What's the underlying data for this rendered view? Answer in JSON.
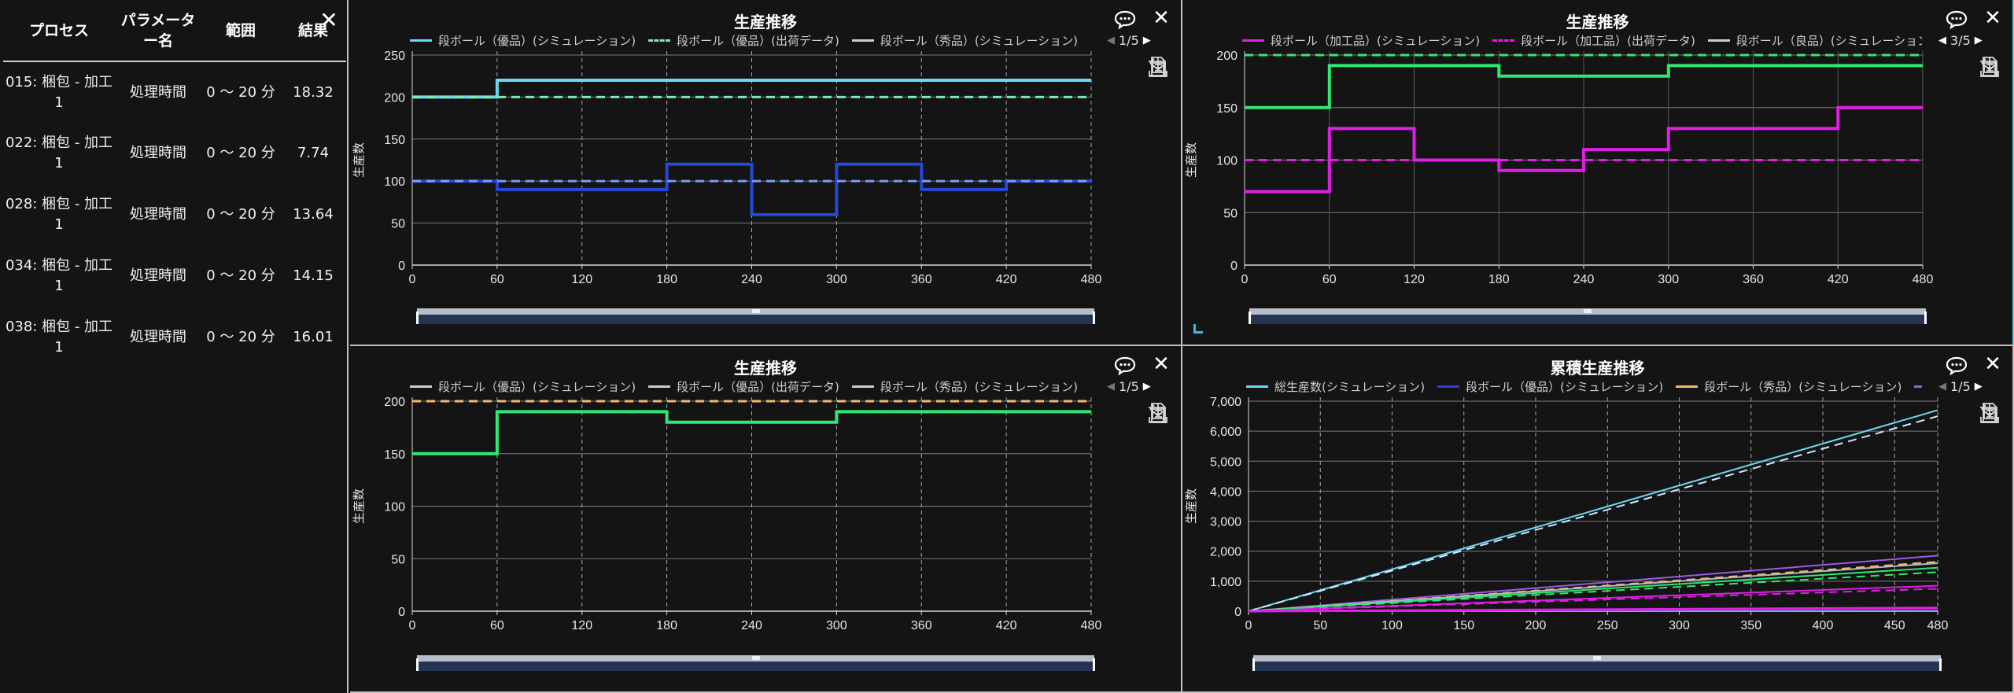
{
  "table": {
    "headers": [
      "プロセス",
      "パラメーター名",
      "範囲",
      "結果"
    ],
    "rows": [
      {
        "process": "015: 梱包 - 加工1",
        "param": "処理時間",
        "range": "0 ～ 20 分",
        "result": "18.32"
      },
      {
        "process": "022: 梱包 - 加工1",
        "param": "処理時間",
        "range": "0 ～ 20 分",
        "result": "7.74"
      },
      {
        "process": "028: 梱包 - 加工1",
        "param": "処理時間",
        "range": "0 ～ 20 分",
        "result": "13.64"
      },
      {
        "process": "034: 梱包 - 加工1",
        "param": "処理時間",
        "range": "0 ～ 20 分",
        "result": "14.15"
      },
      {
        "process": "038: 梱包 - 加工1",
        "param": "処理時間",
        "range": "0 ～ 20 分",
        "result": "16.01"
      }
    ]
  },
  "close_symbol": "✕",
  "charts": [
    {
      "title": "生産推移",
      "legend": [
        {
          "label": "段ボール（優品）(シミュレーション)",
          "color": "#6ad8f2",
          "dashed": false
        },
        {
          "label": "段ボール（優品）(出荷データ)",
          "color": "#7ee8b0",
          "dashed": true
        },
        {
          "label": "段ボール（秀品）(シミュレーション)",
          "color": "#cccccc",
          "dashed": false
        },
        {
          "label": "",
          "color": "#cccccc",
          "dashed": true
        }
      ],
      "page": "1/5",
      "page_prev_enabled": false,
      "ylabel": "生産数",
      "ymax": 250,
      "yticks": [
        0,
        50,
        100,
        150,
        200,
        250
      ],
      "xmax": 480,
      "xticks": [
        0,
        60,
        120,
        180,
        240,
        300,
        360,
        420,
        480
      ],
      "x_dashed_grid": true,
      "show_corner_mark": false,
      "series": [
        {
          "color": "#6ad8f2",
          "dash": false,
          "width": 4,
          "points": [
            [
              0,
              200
            ],
            [
              60,
              200
            ],
            [
              60,
              220
            ],
            [
              480,
              220
            ]
          ]
        },
        {
          "color": "#7ee8b0",
          "dash": true,
          "width": 3,
          "points": [
            [
              0,
              200
            ],
            [
              480,
              200
            ]
          ]
        },
        {
          "color": "#2448d8",
          "dash": false,
          "width": 4,
          "points": [
            [
              0,
              100
            ],
            [
              60,
              100
            ],
            [
              60,
              90
            ],
            [
              180,
              90
            ],
            [
              180,
              120
            ],
            [
              240,
              120
            ],
            [
              240,
              60
            ],
            [
              300,
              60
            ],
            [
              300,
              120
            ],
            [
              360,
              120
            ],
            [
              360,
              90
            ],
            [
              420,
              90
            ],
            [
              420,
              100
            ],
            [
              480,
              100
            ]
          ]
        },
        {
          "color": "#7a9af2",
          "dash": true,
          "width": 3,
          "points": [
            [
              0,
              100
            ],
            [
              480,
              100
            ]
          ]
        }
      ]
    },
    {
      "title": "生産推移",
      "legend": [
        {
          "label": "段ボール（加工品）(シミュレーション)",
          "color": "#e01ee6",
          "dashed": false
        },
        {
          "label": "段ボール（加工品）(出荷データ)",
          "color": "#e01ee6",
          "dashed": true
        },
        {
          "label": "段ボール（良品）(シミュレーション)",
          "color": "#cccccc",
          "dashed": false
        }
      ],
      "page": "3/5",
      "page_prev_enabled": true,
      "ylabel": "生産数",
      "ymax": 200,
      "yticks": [
        0,
        50,
        100,
        150,
        200
      ],
      "xmax": 480,
      "xticks": [
        0,
        60,
        120,
        180,
        240,
        300,
        360,
        420,
        480
      ],
      "x_dashed_grid": false,
      "show_corner_mark": true,
      "series": [
        {
          "color": "#2ee873",
          "dash": false,
          "width": 4,
          "points": [
            [
              0,
              150
            ],
            [
              60,
              150
            ],
            [
              60,
              190
            ],
            [
              180,
              190
            ],
            [
              180,
              180
            ],
            [
              300,
              180
            ],
            [
              300,
              190
            ],
            [
              480,
              190
            ]
          ]
        },
        {
          "color": "#2ee873",
          "dash": true,
          "width": 3,
          "points": [
            [
              0,
              200
            ],
            [
              480,
              200
            ]
          ]
        },
        {
          "color": "#e01ee6",
          "dash": false,
          "width": 4,
          "points": [
            [
              0,
              70
            ],
            [
              60,
              70
            ],
            [
              60,
              130
            ],
            [
              120,
              130
            ],
            [
              120,
              100
            ],
            [
              180,
              100
            ],
            [
              180,
              90
            ],
            [
              240,
              90
            ],
            [
              240,
              110
            ],
            [
              300,
              110
            ],
            [
              300,
              130
            ],
            [
              420,
              130
            ],
            [
              420,
              150
            ],
            [
              480,
              150
            ]
          ]
        },
        {
          "color": "#e01ee6",
          "dash": true,
          "width": 3,
          "points": [
            [
              0,
              100
            ],
            [
              480,
              100
            ]
          ]
        }
      ]
    },
    {
      "title": "生産推移",
      "legend": [
        {
          "label": "段ボール（優品）(シミュレーション)",
          "color": "#cccccc",
          "dashed": false
        },
        {
          "label": "段ボール（優品）(出荷データ)",
          "color": "#cccccc",
          "dashed": false
        },
        {
          "label": "段ボール（秀品）(シミュレーション)",
          "color": "#cccccc",
          "dashed": false
        },
        {
          "label": "",
          "color": "#f2b872",
          "dashed": true
        }
      ],
      "page": "1/5",
      "page_prev_enabled": false,
      "ylabel": "生産数",
      "ymax": 200,
      "yticks": [
        0,
        50,
        100,
        150,
        200
      ],
      "xmax": 480,
      "xticks": [
        0,
        60,
        120,
        180,
        240,
        300,
        360,
        420,
        480
      ],
      "x_dashed_grid": true,
      "show_corner_mark": false,
      "series": [
        {
          "color": "#f2b872",
          "dash": true,
          "width": 3,
          "points": [
            [
              0,
              200
            ],
            [
              480,
              200
            ]
          ]
        },
        {
          "color": "#2ee873",
          "dash": false,
          "width": 4,
          "points": [
            [
              0,
              150
            ],
            [
              60,
              150
            ],
            [
              60,
              190
            ],
            [
              180,
              190
            ],
            [
              180,
              180
            ],
            [
              300,
              180
            ],
            [
              300,
              190
            ],
            [
              480,
              190
            ]
          ]
        }
      ]
    },
    {
      "title": "累積生産推移",
      "legend": [
        {
          "label": "総生産数(シミュレーション)",
          "color": "#6ad8f2",
          "dashed": false
        },
        {
          "label": "段ボール（優品）(シミュレーション)",
          "color": "#2d3fd8",
          "dashed": false
        },
        {
          "label": "段ボール（秀品）(シミュレーション)",
          "color": "#f2b872",
          "dashed": false
        },
        {
          "label": "",
          "color": "#9a5ae8",
          "dashed": false
        }
      ],
      "page": "1/5",
      "page_prev_enabled": false,
      "ylabel": "生産数",
      "ymax": 7000,
      "yticks": [
        0,
        1000,
        2000,
        3000,
        4000,
        5000,
        6000,
        7000
      ],
      "xmax": 480,
      "xticks": [
        0,
        50,
        100,
        150,
        200,
        250,
        300,
        350,
        400,
        450,
        480
      ],
      "x_dashed_grid": true,
      "show_corner_mark": false,
      "series": [
        {
          "color": "#6ad8f2",
          "dash": false,
          "width": 2,
          "points": [
            [
              0,
              0
            ],
            [
              480,
              6700
            ]
          ]
        },
        {
          "color": "#cfe8ff",
          "dash": true,
          "width": 2,
          "points": [
            [
              0,
              0
            ],
            [
              480,
              6500
            ]
          ]
        },
        {
          "color": "#9a5ae8",
          "dash": false,
          "width": 2,
          "points": [
            [
              0,
              0
            ],
            [
              480,
              1850
            ]
          ]
        },
        {
          "color": "#f2b872",
          "dash": true,
          "width": 2,
          "points": [
            [
              0,
              0
            ],
            [
              480,
              1650
            ]
          ]
        },
        {
          "color": "#b8b8b8",
          "dash": false,
          "width": 2,
          "points": [
            [
              0,
              0
            ],
            [
              480,
              1600
            ]
          ]
        },
        {
          "color": "#2ee873",
          "dash": false,
          "width": 2,
          "points": [
            [
              0,
              0
            ],
            [
              480,
              1450
            ]
          ]
        },
        {
          "color": "#2ee873",
          "dash": true,
          "width": 2,
          "points": [
            [
              0,
              0
            ],
            [
              480,
              1300
            ]
          ]
        },
        {
          "color": "#e01ee6",
          "dash": false,
          "width": 2,
          "points": [
            [
              0,
              0
            ],
            [
              480,
              850
            ]
          ]
        },
        {
          "color": "#e01ee6",
          "dash": true,
          "width": 2,
          "points": [
            [
              0,
              0
            ],
            [
              480,
              750
            ]
          ]
        },
        {
          "color": "#2d3fd8",
          "dash": false,
          "width": 2,
          "points": [
            [
              0,
              0
            ],
            [
              480,
              60
            ]
          ]
        },
        {
          "color": "#e01ee6",
          "dash": false,
          "width": 3,
          "points": [
            [
              0,
              0
            ],
            [
              480,
              110
            ]
          ]
        }
      ]
    }
  ]
}
